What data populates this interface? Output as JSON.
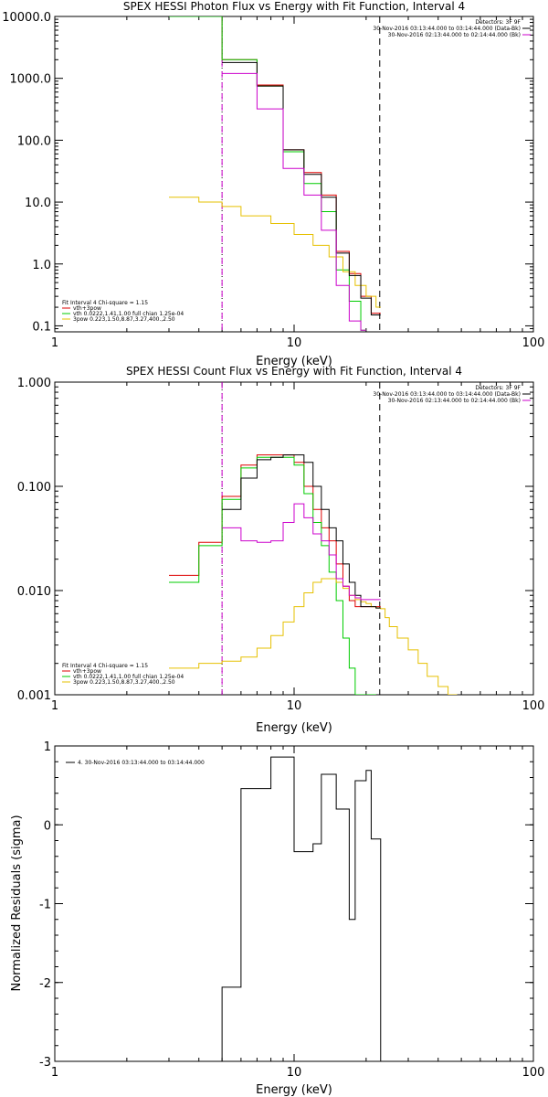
{
  "chart_data": [
    {
      "type": "line",
      "title": "SPEX HESSI Photon Flux vs Energy with Fit Function, Interval 4",
      "xlabel": "Energy (keV)",
      "ylabel": "",
      "xscale": "log",
      "yscale": "log",
      "xlim": [
        1,
        100
      ],
      "ylim": [
        0.08,
        10000
      ],
      "xticks": [
        1,
        10,
        100
      ],
      "xtick_labels": [
        "1",
        "10",
        "100"
      ],
      "yticks": [
        0.1,
        1,
        10,
        100,
        1000,
        10000
      ],
      "ytick_labels": [
        "0.1",
        "1.0",
        "10.0",
        "100.0",
        "1000.0",
        "10000.0"
      ],
      "vlines": [
        {
          "x": 5.0,
          "style": "dotted",
          "color": "#000000"
        },
        {
          "x": 5.0,
          "style": "dashed",
          "color": "#cc00cc"
        },
        {
          "x": 22.8,
          "style": "dashed",
          "color": "#000000"
        }
      ],
      "info_top_right": [
        {
          "text": "Detectors: 3F 9F",
          "color": "#000000",
          "line": false
        },
        {
          "text": "30-Nov-2016 03:13:44.000 to 03:14:44.000 (Data-Bk)",
          "color": "#000000",
          "line": true
        },
        {
          "text": "30-Nov-2016 02:13:44.000 to 02:14:44.000 (Bk)",
          "color": "#cc00cc",
          "line": true
        }
      ],
      "fit_header": "Fit Interval  4    Chi-square = 1.15",
      "legend_position": "bottom-left",
      "series": [
        {
          "name": "vth+3pow",
          "color": "#dd0000",
          "x": [
            3,
            4,
            5,
            6,
            7,
            8,
            9,
            10,
            11,
            12,
            13,
            14,
            15,
            16,
            17,
            18,
            19,
            20,
            21,
            22,
            23
          ],
          "y": [
            10000,
            10000,
            2000,
            2000,
            780,
            780,
            70,
            70,
            30,
            30,
            13,
            13,
            1.6,
            1.6,
            0.7,
            0.7,
            0.3,
            0.3,
            0.16,
            0.16,
            0.16
          ]
        },
        {
          "name": "vth 0.0222,1.41,1.00  full chian 1.25e-04",
          "color": "#00cc00",
          "x": [
            3,
            4,
            5,
            6,
            7,
            8,
            9,
            10,
            11,
            12,
            13,
            14,
            15,
            16,
            17,
            18,
            19,
            20
          ],
          "y": [
            10000,
            10000,
            2000,
            2000,
            750,
            750,
            65,
            65,
            20,
            20,
            7,
            7,
            0.8,
            0.8,
            0.25,
            0.25,
            0.085,
            0.085
          ]
        },
        {
          "name": "3pow 0.223,1.50,8.87,3.27,400.,2.50",
          "color": "#e6c000",
          "x": [
            3,
            4,
            5,
            6,
            7,
            8,
            9,
            10,
            11,
            12,
            13,
            14,
            15,
            16,
            17,
            18,
            19,
            20,
            21,
            22,
            23
          ],
          "y": [
            12,
            10,
            8.5,
            6,
            6,
            4.5,
            4.5,
            3,
            3,
            2,
            2,
            1.3,
            1.3,
            0.75,
            0.75,
            0.45,
            0.45,
            0.3,
            0.3,
            0.2,
            0.2
          ]
        },
        {
          "name": "Data-Bk",
          "color": "#000000",
          "x": [
            5,
            6,
            7,
            8,
            9,
            10,
            11,
            12,
            13,
            14,
            15,
            16,
            17,
            18,
            19,
            20,
            21,
            22,
            23
          ],
          "y": [
            1800,
            1800,
            750,
            750,
            70,
            70,
            28,
            28,
            12,
            12,
            1.5,
            1.5,
            0.65,
            0.65,
            0.28,
            0.28,
            0.15,
            0.15,
            0.15
          ]
        },
        {
          "name": "Bk",
          "color": "#cc00cc",
          "x": [
            5,
            6,
            7,
            8,
            9,
            10,
            11,
            12,
            13,
            14,
            15,
            16,
            17,
            18,
            19,
            20
          ],
          "y": [
            1200,
            1200,
            320,
            320,
            35,
            35,
            13,
            13,
            3.5,
            3.5,
            0.45,
            0.45,
            0.12,
            0.12,
            0.085,
            0.085
          ]
        }
      ]
    },
    {
      "type": "line",
      "title": "SPEX HESSI Count Flux vs Energy with Fit Function, Interval 4",
      "xlabel": "Energy (keV)",
      "ylabel": "",
      "xscale": "log",
      "yscale": "log",
      "xlim": [
        1,
        100
      ],
      "ylim": [
        0.001,
        1
      ],
      "xticks": [
        1,
        10,
        100
      ],
      "xtick_labels": [
        "1",
        "10",
        "100"
      ],
      "yticks": [
        0.001,
        0.01,
        0.1,
        1
      ],
      "ytick_labels": [
        "0.001",
        "0.010",
        "0.100",
        "1.000"
      ],
      "vlines": [
        {
          "x": 5.0,
          "style": "dotted",
          "color": "#000000"
        },
        {
          "x": 5.0,
          "style": "dashed",
          "color": "#cc00cc"
        },
        {
          "x": 22.8,
          "style": "dashed",
          "color": "#000000"
        }
      ],
      "info_top_right": [
        {
          "text": "Detectors: 3F 9F",
          "color": "#000000",
          "line": false
        },
        {
          "text": "30-Nov-2016 03:13:44.000 to 03:14:44.000 (Data-Bk)",
          "color": "#000000",
          "line": true
        },
        {
          "text": "30-Nov-2016 02:13:44.000 to 02:14:44.000 (Bk)",
          "color": "#cc00cc",
          "line": true
        }
      ],
      "fit_header": "Fit Interval  4    Chi-square = 1.15",
      "legend_position": "bottom-left",
      "series": [
        {
          "name": "vth+3pow",
          "color": "#dd0000",
          "x": [
            3,
            4,
            5,
            6,
            7,
            8,
            9,
            10,
            11,
            12,
            13,
            14,
            15,
            16,
            17,
            18,
            19,
            20,
            21,
            22,
            23
          ],
          "y": [
            0.014,
            0.029,
            0.08,
            0.16,
            0.2,
            0.2,
            0.2,
            0.17,
            0.1,
            0.06,
            0.04,
            0.03,
            0.018,
            0.011,
            0.008,
            0.007,
            0.007,
            0.007,
            0.007,
            0.007,
            0.007
          ]
        },
        {
          "name": "vth 0.0222,1.41,1.00  full chian 1.25e-04",
          "color": "#00cc00",
          "x": [
            3,
            4,
            5,
            6,
            7,
            8,
            9,
            10,
            11,
            12,
            13,
            14,
            15,
            16,
            17,
            18,
            19,
            20,
            21,
            22
          ],
          "y": [
            0.012,
            0.027,
            0.075,
            0.15,
            0.19,
            0.19,
            0.19,
            0.16,
            0.085,
            0.045,
            0.027,
            0.015,
            0.008,
            0.0035,
            0.0018,
            0.001,
            0.001,
            0.001,
            0.001,
            0.001
          ]
        },
        {
          "name": "3pow 0.223,1.50,8.87,3.27,400.,2.50",
          "color": "#e6c000",
          "x": [
            3,
            4,
            5,
            6,
            7,
            8,
            9,
            10,
            11,
            12,
            13,
            14,
            15,
            16,
            17,
            18,
            19,
            20,
            21,
            22,
            23,
            24,
            25,
            27,
            30,
            33,
            36,
            40,
            44,
            48
          ],
          "y": [
            0.0018,
            0.002,
            0.0021,
            0.0023,
            0.0028,
            0.0037,
            0.005,
            0.007,
            0.0095,
            0.012,
            0.013,
            0.013,
            0.012,
            0.0105,
            0.009,
            0.0082,
            0.0078,
            0.0075,
            0.007,
            0.0068,
            0.0067,
            0.0055,
            0.0045,
            0.0035,
            0.0027,
            0.002,
            0.0015,
            0.0012,
            0.001,
            0.001
          ]
        },
        {
          "name": "Data-Bk",
          "color": "#000000",
          "x": [
            5,
            6,
            7,
            8,
            9,
            10,
            11,
            12,
            13,
            14,
            15,
            16,
            17,
            18,
            19,
            20,
            21,
            22,
            23
          ],
          "y": [
            0.06,
            0.12,
            0.18,
            0.19,
            0.2,
            0.2,
            0.17,
            0.1,
            0.06,
            0.04,
            0.03,
            0.018,
            0.012,
            0.009,
            0.007,
            0.007,
            0.007,
            0.0068,
            0.0068
          ]
        },
        {
          "name": "Bk",
          "color": "#cc00cc",
          "x": [
            5,
            6,
            7,
            8,
            9,
            10,
            11,
            12,
            13,
            14,
            15,
            16,
            17,
            18,
            19,
            20,
            21,
            22,
            23
          ],
          "y": [
            0.04,
            0.03,
            0.029,
            0.03,
            0.045,
            0.068,
            0.05,
            0.035,
            0.03,
            0.022,
            0.013,
            0.011,
            0.009,
            0.0085,
            0.0082,
            0.0082,
            0.0082,
            0.0082,
            0.0082
          ]
        }
      ]
    },
    {
      "type": "line",
      "title": "",
      "xlabel": "Energy (keV)",
      "ylabel": "Normalized Residuals (sigma)",
      "xscale": "log",
      "yscale": "linear",
      "xlim": [
        1,
        100
      ],
      "ylim": [
        -3,
        1
      ],
      "xticks": [
        1,
        10,
        100
      ],
      "xtick_labels": [
        "1",
        "10",
        "100"
      ],
      "yticks": [
        -3,
        -2,
        -1,
        0,
        1
      ],
      "ytick_labels": [
        "-3",
        "-2",
        "-1",
        "0",
        "1"
      ],
      "legend_position": "top-left",
      "series": [
        {
          "name": "4. 30-Nov-2016 03:13:44.000 to 03:14:44.000",
          "color": "#000000",
          "x": [
            5,
            6,
            7,
            8,
            9,
            10,
            11,
            12,
            13,
            14,
            15,
            16,
            17,
            18,
            19,
            20,
            21,
            22,
            23
          ],
          "y": [
            -2.06,
            0.46,
            0.46,
            0.86,
            0.86,
            -0.34,
            -0.34,
            -0.24,
            0.64,
            0.64,
            0.2,
            0.2,
            -1.2,
            0.56,
            0.56,
            0.69,
            -0.18,
            -0.18,
            -0.18
          ]
        }
      ]
    }
  ]
}
